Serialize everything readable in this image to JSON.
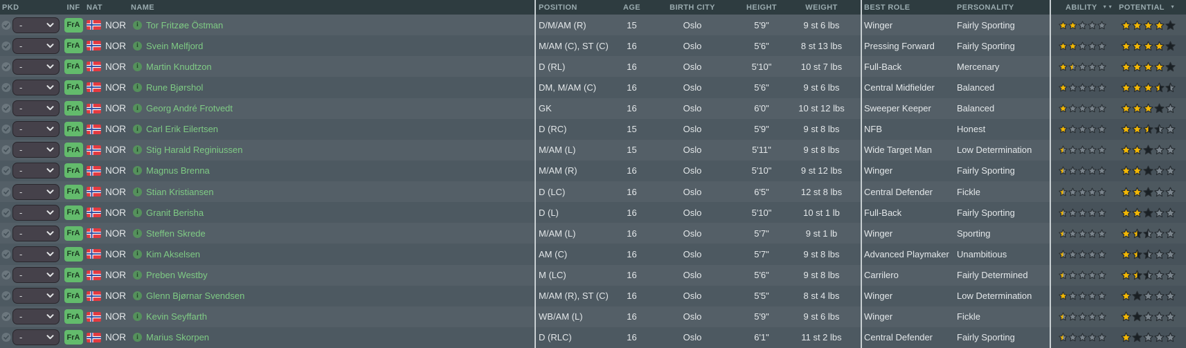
{
  "table": {
    "columns": {
      "pkd": "PKD",
      "inf": "INF",
      "nat": "NAT",
      "name": "NAME",
      "position": "POSITION",
      "age": "AGE",
      "birth_city": "BIRTH CITY",
      "height": "HEIGHT",
      "weight": "WEIGHT",
      "best_role": "BEST ROLE",
      "personality": "PERSONALITY",
      "ability": "ABILITY",
      "potential": "POTENTIAL"
    },
    "sort_icons": {
      "ability": "▼▼",
      "potential": "▼"
    },
    "pkd_value": "-",
    "inf_badge": "FrA",
    "nationality": "NOR",
    "star_legend": {
      "g": "full-gold",
      "e": "empty-gray",
      "d": "full-dark",
      "gd": "half-gold-half-dark",
      "ge": "half-gold-half-empty",
      "de": "half-dark-half-empty"
    },
    "rows": [
      {
        "name": "Tor Fritzøe Östman",
        "position": "D/M/AM (R)",
        "age": "15",
        "birth_city": "Oslo",
        "height": "5'9\"",
        "weight": "9 st 6 lbs",
        "best_role": "Winger",
        "personality": "Fairly Sporting",
        "ability": [
          "g",
          "g",
          "e",
          "e",
          "e"
        ],
        "potential": [
          "g",
          "g",
          "g",
          "g",
          "d"
        ]
      },
      {
        "name": "Svein Melfjord",
        "position": "M/AM (C), ST (C)",
        "age": "16",
        "birth_city": "Oslo",
        "height": "5'6\"",
        "weight": "8 st 13 lbs",
        "best_role": "Pressing Forward",
        "personality": "Fairly Sporting",
        "ability": [
          "g",
          "g",
          "e",
          "e",
          "e"
        ],
        "potential": [
          "g",
          "g",
          "g",
          "g",
          "d"
        ]
      },
      {
        "name": "Martin Knudtzon",
        "position": "D (RL)",
        "age": "16",
        "birth_city": "Oslo",
        "height": "5'10\"",
        "weight": "10 st 7 lbs",
        "best_role": "Full-Back",
        "personality": "Mercenary",
        "ability": [
          "g",
          "ge",
          "e",
          "e",
          "e"
        ],
        "potential": [
          "g",
          "g",
          "g",
          "g",
          "d"
        ]
      },
      {
        "name": "Rune Bjørshol",
        "position": "DM, M/AM (C)",
        "age": "16",
        "birth_city": "Oslo",
        "height": "5'6\"",
        "weight": "9 st 6 lbs",
        "best_role": "Central Midfielder",
        "personality": "Balanced",
        "ability": [
          "g",
          "e",
          "e",
          "e",
          "e"
        ],
        "potential": [
          "g",
          "g",
          "g",
          "gd",
          "de"
        ]
      },
      {
        "name": "Georg André Frotvedt",
        "position": "GK",
        "age": "16",
        "birth_city": "Oslo",
        "height": "6'0\"",
        "weight": "10 st 12 lbs",
        "best_role": "Sweeper Keeper",
        "personality": "Balanced",
        "ability": [
          "g",
          "e",
          "e",
          "e",
          "e"
        ],
        "potential": [
          "g",
          "g",
          "g",
          "d",
          "e"
        ]
      },
      {
        "name": "Carl Erik Eilertsen",
        "position": "D (RC)",
        "age": "15",
        "birth_city": "Oslo",
        "height": "5'9\"",
        "weight": "9 st 8 lbs",
        "best_role": "NFB",
        "personality": "Honest",
        "ability": [
          "g",
          "e",
          "e",
          "e",
          "e"
        ],
        "potential": [
          "g",
          "g",
          "gd",
          "de",
          "e"
        ]
      },
      {
        "name": "Stig Harald Reginiussen",
        "position": "M/AM (L)",
        "age": "15",
        "birth_city": "Oslo",
        "height": "5'11\"",
        "weight": "9 st 8 lbs",
        "best_role": "Wide Target Man",
        "personality": "Low Determination",
        "ability": [
          "ge",
          "e",
          "e",
          "e",
          "e"
        ],
        "potential": [
          "g",
          "g",
          "d",
          "e",
          "e"
        ]
      },
      {
        "name": "Magnus Brenna",
        "position": "M/AM (R)",
        "age": "16",
        "birth_city": "Oslo",
        "height": "5'10\"",
        "weight": "9 st 12 lbs",
        "best_role": "Winger",
        "personality": "Fairly Sporting",
        "ability": [
          "ge",
          "e",
          "e",
          "e",
          "e"
        ],
        "potential": [
          "g",
          "g",
          "d",
          "e",
          "e"
        ]
      },
      {
        "name": "Stian Kristiansen",
        "position": "D (LC)",
        "age": "16",
        "birth_city": "Oslo",
        "height": "6'5\"",
        "weight": "12 st 8 lbs",
        "best_role": "Central Defender",
        "personality": "Fickle",
        "ability": [
          "ge",
          "e",
          "e",
          "e",
          "e"
        ],
        "potential": [
          "g",
          "g",
          "d",
          "e",
          "e"
        ]
      },
      {
        "name": "Granit Berisha",
        "position": "D (L)",
        "age": "16",
        "birth_city": "Oslo",
        "height": "5'10\"",
        "weight": "10 st 1 lb",
        "best_role": "Full-Back",
        "personality": "Fairly Sporting",
        "ability": [
          "ge",
          "e",
          "e",
          "e",
          "e"
        ],
        "potential": [
          "g",
          "g",
          "d",
          "e",
          "e"
        ]
      },
      {
        "name": "Steffen Skrede",
        "position": "M/AM (L)",
        "age": "16",
        "birth_city": "Oslo",
        "height": "5'7\"",
        "weight": "9 st 1 lb",
        "best_role": "Winger",
        "personality": "Sporting",
        "ability": [
          "ge",
          "e",
          "e",
          "e",
          "e"
        ],
        "potential": [
          "g",
          "gd",
          "de",
          "e",
          "e"
        ]
      },
      {
        "name": "Kim Akselsen",
        "position": "AM (C)",
        "age": "16",
        "birth_city": "Oslo",
        "height": "5'7\"",
        "weight": "9 st 8 lbs",
        "best_role": "Advanced Playmaker",
        "personality": "Unambitious",
        "ability": [
          "ge",
          "e",
          "e",
          "e",
          "e"
        ],
        "potential": [
          "g",
          "gd",
          "de",
          "e",
          "e"
        ]
      },
      {
        "name": "Preben Westby",
        "position": "M (LC)",
        "age": "16",
        "birth_city": "Oslo",
        "height": "5'6\"",
        "weight": "9 st 8 lbs",
        "best_role": "Carrilero",
        "personality": "Fairly Determined",
        "ability": [
          "ge",
          "e",
          "e",
          "e",
          "e"
        ],
        "potential": [
          "g",
          "gd",
          "de",
          "e",
          "e"
        ]
      },
      {
        "name": "Glenn Bjørnar Svendsen",
        "position": "M/AM (R), ST (C)",
        "age": "16",
        "birth_city": "Oslo",
        "height": "5'5\"",
        "weight": "8 st 4 lbs",
        "best_role": "Winger",
        "personality": "Low Determination",
        "ability": [
          "g",
          "e",
          "e",
          "e",
          "e"
        ],
        "potential": [
          "g",
          "d",
          "e",
          "e",
          "e"
        ]
      },
      {
        "name": "Kevin Seyffarth",
        "position": "WB/AM (L)",
        "age": "16",
        "birth_city": "Oslo",
        "height": "5'9\"",
        "weight": "9 st 6 lbs",
        "best_role": "Winger",
        "personality": "Fickle",
        "ability": [
          "ge",
          "e",
          "e",
          "e",
          "e"
        ],
        "potential": [
          "g",
          "d",
          "e",
          "e",
          "e"
        ]
      },
      {
        "name": "Marius Skorpen",
        "position": "D (RLC)",
        "age": "16",
        "birth_city": "Oslo",
        "height": "6'1\"",
        "weight": "11 st 2 lbs",
        "best_role": "Central Defender",
        "personality": "Fairly Sporting",
        "ability": [
          "ge",
          "e",
          "e",
          "e",
          "e"
        ],
        "potential": [
          "g",
          "d",
          "e",
          "e",
          "e"
        ]
      }
    ]
  },
  "colors": {
    "header_bg": "#2e3c40",
    "row_light": "#545f67",
    "row_dark": "#4d5961",
    "name_green": "#7fcb84",
    "badge_green": "#63bb6c",
    "divider": "#c9d0d3",
    "star_gold": "#f2b705",
    "star_empty": "#7a848c",
    "star_dark": "#1a2024",
    "star_outline": "#262c31",
    "flag_red": "#e33a40",
    "flag_blue": "#2b4a9e",
    "flag_white": "#ffffff"
  }
}
